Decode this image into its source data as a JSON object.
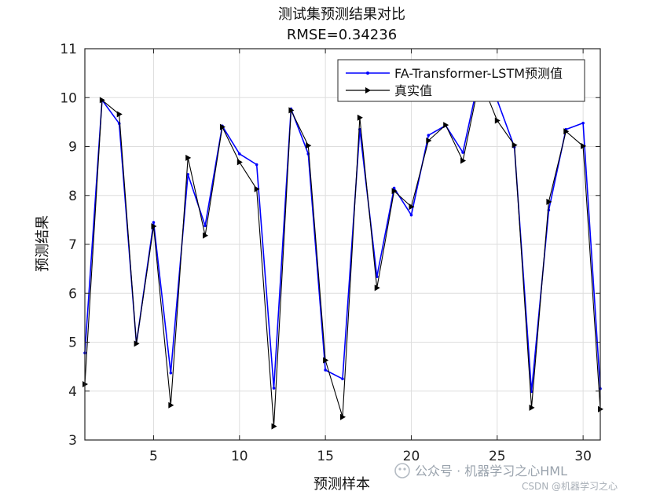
{
  "chart_data": {
    "type": "line",
    "title": "测试集预测结果对比",
    "subtitle": "RMSE=0.34236",
    "xlabel": "预测样本",
    "ylabel": "预测结果",
    "xlim": [
      1,
      31
    ],
    "ylim": [
      3,
      11
    ],
    "xticks": [
      5,
      10,
      15,
      20,
      25,
      30
    ],
    "yticks": [
      3,
      4,
      5,
      6,
      7,
      8,
      9,
      10,
      11
    ],
    "grid": true,
    "legend_position": "top-right",
    "x": [
      1,
      2,
      3,
      4,
      5,
      6,
      7,
      8,
      9,
      10,
      11,
      12,
      13,
      14,
      15,
      16,
      17,
      18,
      19,
      20,
      21,
      22,
      23,
      24,
      25,
      26,
      27,
      28,
      29,
      30,
      31
    ],
    "series": [
      {
        "name": "FA-Transformer-LSTM预测值",
        "color": "#0000ff",
        "marker": "dot",
        "values": [
          4.78,
          9.95,
          9.47,
          4.97,
          7.45,
          4.37,
          8.43,
          7.38,
          9.42,
          8.85,
          8.63,
          4.06,
          9.77,
          8.85,
          4.43,
          4.25,
          9.35,
          6.34,
          8.15,
          7.6,
          9.23,
          9.43,
          8.88,
          10.5,
          9.95,
          8.99,
          3.99,
          7.7,
          9.35,
          9.48,
          4.05
        ]
      },
      {
        "name": "真实值",
        "color": "#000000",
        "marker": "triangle-right",
        "values": [
          4.14,
          9.95,
          9.66,
          4.97,
          7.37,
          3.71,
          8.77,
          7.18,
          9.4,
          8.68,
          8.13,
          3.28,
          9.74,
          9.02,
          4.63,
          3.47,
          9.59,
          6.11,
          8.09,
          7.77,
          9.12,
          9.44,
          8.71,
          10.4,
          9.53,
          9.03,
          3.66,
          7.87,
          9.31,
          9.01,
          3.63
        ]
      }
    ]
  },
  "watermark": {
    "main": "公众号 · 机器学习之心HML",
    "small": "CSDN @机器学习之心"
  }
}
